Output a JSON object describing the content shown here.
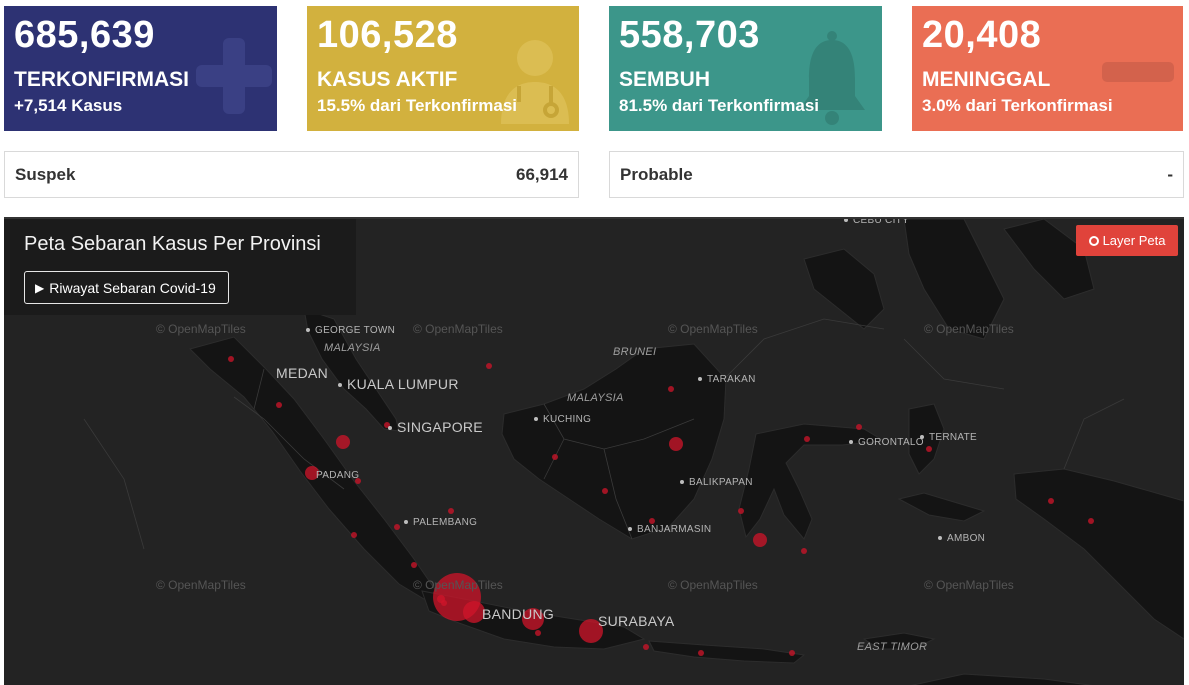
{
  "cards": {
    "confirmed": {
      "value": "685,639",
      "label": "TERKONFIRMASI",
      "sub": "+7,514 Kasus",
      "color": "#2d3273",
      "icon": "plus-icon"
    },
    "active": {
      "value": "106,528",
      "label": "KASUS AKTIF",
      "sub": "15.5% dari Terkonfirmasi",
      "color": "#d2b13e",
      "icon": "doctor-icon"
    },
    "recovered": {
      "value": "558,703",
      "label": "SEMBUH",
      "sub": "81.5% dari Terkonfirmasi",
      "color": "#3c968a",
      "icon": "bell-icon"
    },
    "deaths": {
      "value": "20,408",
      "label": "MENINGGAL",
      "sub": "3.0% dari Terkonfirmasi",
      "color": "#ea6e54",
      "icon": "minus-icon"
    }
  },
  "suspek": {
    "label": "Suspek",
    "value": "66,914"
  },
  "probable": {
    "label": "Probable",
    "value": "-"
  },
  "map": {
    "title": "Peta Sebaran Kasus Per Provinsi",
    "history_button": "Riwayat Sebaran Covid-19",
    "layer_button": "Layer Peta",
    "attribution": "© OpenMapTiles",
    "labels": {
      "george_town": "GEORGE TOWN",
      "malaysia_w": "MALAYSIA",
      "medan": "MEDAN",
      "kuala_lumpur": "KUALA LUMPUR",
      "singapore": "SINGAPORE",
      "padang": "PADANG",
      "palembang": "PALEMBANG",
      "bandung": "BANDUNG",
      "surabaya": "SURABAYA",
      "brunei": "BRUNEI",
      "tarakan": "TARAKAN",
      "malaysia_e": "MALAYSIA",
      "kuching": "KUCHING",
      "balikpapan": "BALIKPAPAN",
      "banjarmasin": "BANJARMASIN",
      "gorontalo": "GORONTALO",
      "ternate": "TERNATE",
      "ambon": "AMBON",
      "east_timor": "EAST TIMOR",
      "cebu_city": "CEBU CITY"
    }
  }
}
